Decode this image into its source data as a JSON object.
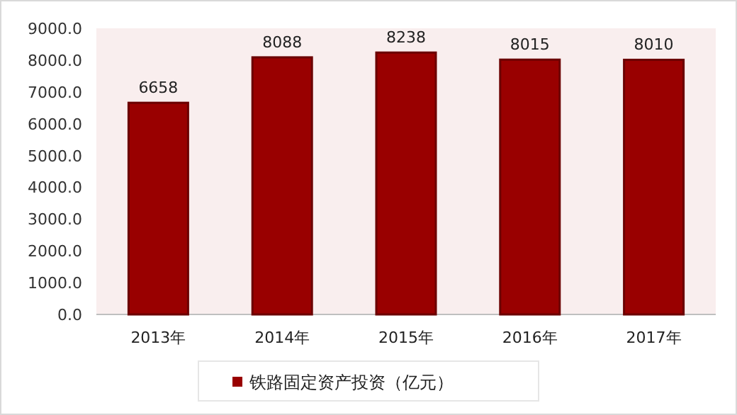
{
  "chart_data": {
    "type": "bar",
    "categories": [
      "2013年",
      "2014年",
      "2015年",
      "2016年",
      "2017年"
    ],
    "series": [
      {
        "name": "铁路固定资产投资（亿元）",
        "color": "#990000",
        "values": [
          6658,
          8088,
          8238,
          8015,
          8010
        ]
      }
    ],
    "ylim": [
      0,
      9000
    ],
    "yticks": [
      {
        "value": 0,
        "label": "0.0"
      },
      {
        "value": 1000,
        "label": "1000.0"
      },
      {
        "value": 2000,
        "label": "2000.0"
      },
      {
        "value": 3000,
        "label": "3000.0"
      },
      {
        "value": 4000,
        "label": "4000.0"
      },
      {
        "value": 5000,
        "label": "5000.0"
      },
      {
        "value": 6000,
        "label": "6000.0"
      },
      {
        "value": 7000,
        "label": "7000.0"
      },
      {
        "value": 8000,
        "label": "8000.0"
      },
      {
        "value": 9000,
        "label": "9000.0"
      }
    ],
    "data_labels": true,
    "legend": "bottom"
  }
}
